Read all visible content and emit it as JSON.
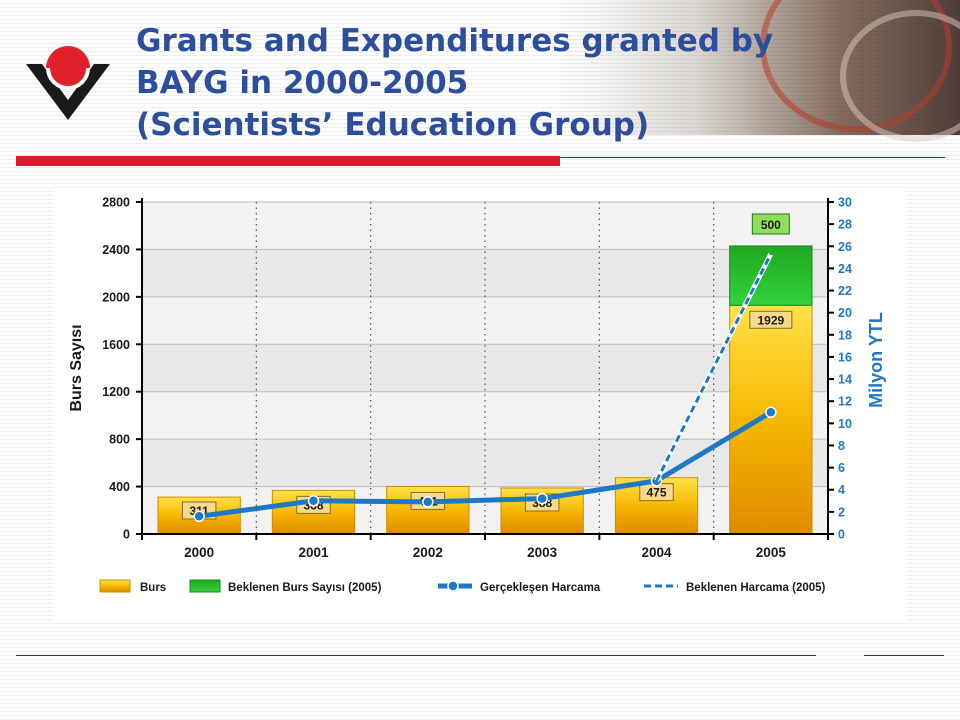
{
  "title": {
    "line1": "Grants and Expenditures granted by",
    "line2": "BAYG in 2000-2005",
    "line3": "(Scientists’ Education Group)"
  },
  "colors": {
    "title": "#2d4e9c",
    "accent_red": "#d0202a",
    "bar_orange": "#f0a800",
    "bar_green": "#22b82a",
    "line_blue": "#1e78c8"
  },
  "chart_data": {
    "type": "bar",
    "categories": [
      "2000",
      "2001",
      "2002",
      "2003",
      "2004",
      "2005"
    ],
    "y_left": {
      "label": "Burs Sayısı",
      "range": [
        0,
        2800
      ],
      "ticks": [
        0,
        400,
        800,
        1200,
        1600,
        2000,
        2400,
        2800
      ]
    },
    "y_right": {
      "label": "Milyon YTL",
      "range": [
        0,
        30
      ],
      "ticks": [
        0,
        2,
        4,
        6,
        8,
        10,
        12,
        14,
        16,
        18,
        20,
        22,
        24,
        26,
        28,
        30
      ]
    },
    "series": [
      {
        "name": "Burs",
        "type": "bar",
        "axis": "left",
        "values": [
          311,
          368,
          401,
          388,
          475,
          1929
        ],
        "labels": [
          "311",
          "368",
          "401",
          "388",
          "475",
          "1929"
        ]
      },
      {
        "name": "Beklenen Burs Sayısı (2005)",
        "type": "bar-stacked",
        "axis": "left",
        "values": [
          null,
          null,
          null,
          null,
          null,
          500
        ],
        "labels": [
          "",
          "",
          "",
          "",
          "",
          "500"
        ]
      },
      {
        "name": "Gerçekleşen Harcama",
        "type": "line",
        "axis": "right",
        "values": [
          1.6,
          3.0,
          2.9,
          3.2,
          4.8,
          11.0
        ]
      },
      {
        "name": "Beklenen Harcama (2005)",
        "type": "line-dashed",
        "axis": "right",
        "x": [
          "2004",
          "2005"
        ],
        "values": [
          4.8,
          25.3
        ]
      }
    ],
    "grid": true,
    "legend": {
      "position": "bottom",
      "items": [
        "Burs",
        "Beklenen  Burs Sayısı (2005)",
        "Gerçekleşen Harcama",
        "Beklenen Harcama (2005)"
      ]
    }
  }
}
